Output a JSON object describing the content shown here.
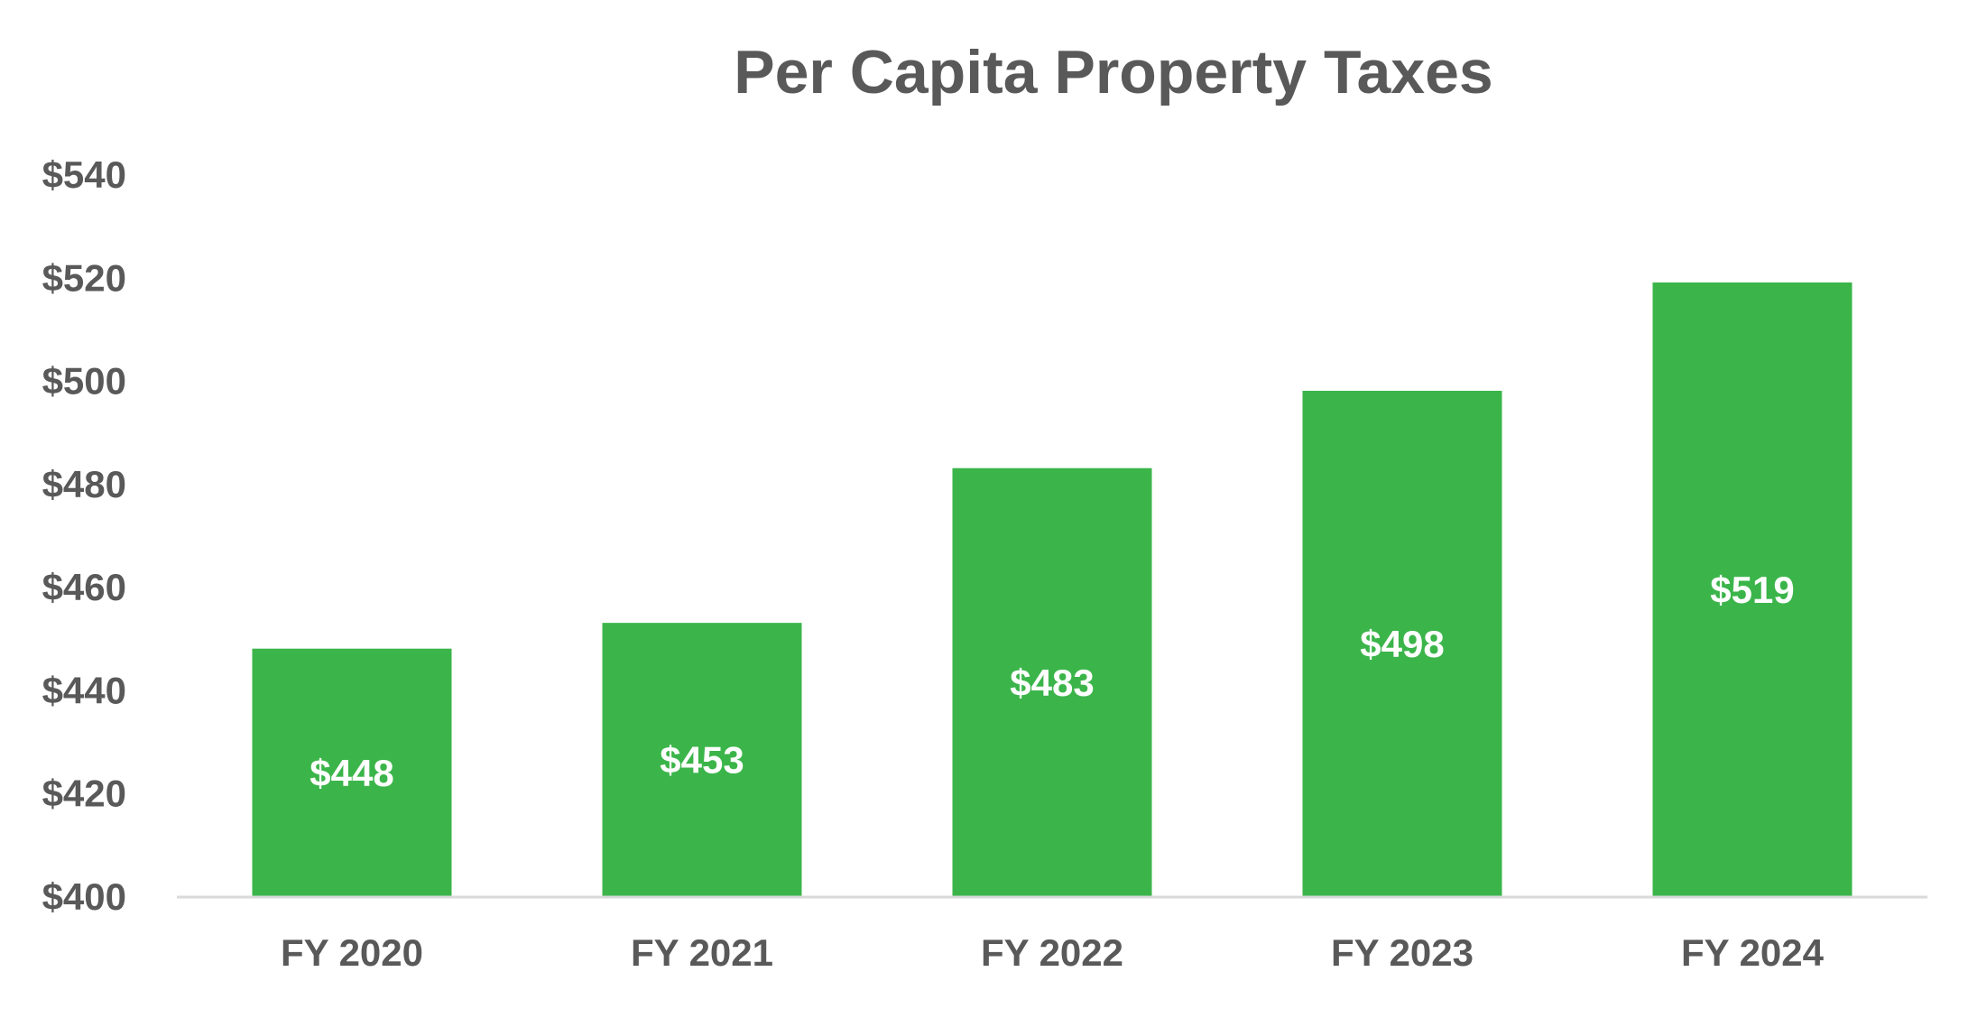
{
  "chart_data": {
    "type": "bar",
    "title": "Per Capita Property Taxes",
    "xlabel": "",
    "ylabel": "",
    "categories": [
      "FY 2020",
      "FY 2021",
      "FY 2022",
      "FY 2023",
      "FY 2024"
    ],
    "values": [
      448,
      453,
      483,
      498,
      519
    ],
    "data_labels": [
      "$448",
      "$453",
      "$483",
      "$498",
      "$519"
    ],
    "ylim": [
      400,
      540
    ],
    "yticks": [
      400,
      420,
      440,
      460,
      480,
      500,
      520,
      540
    ],
    "ytick_labels": [
      "$400",
      "$420",
      "$440",
      "$460",
      "$480",
      "$500",
      "$520",
      "$540"
    ],
    "grid": false,
    "legend": "none",
    "colors": {
      "bar": "#3BB54A",
      "text": "#595959",
      "axis": "#D9D9D9",
      "data_label": "#FFFFFF"
    }
  }
}
